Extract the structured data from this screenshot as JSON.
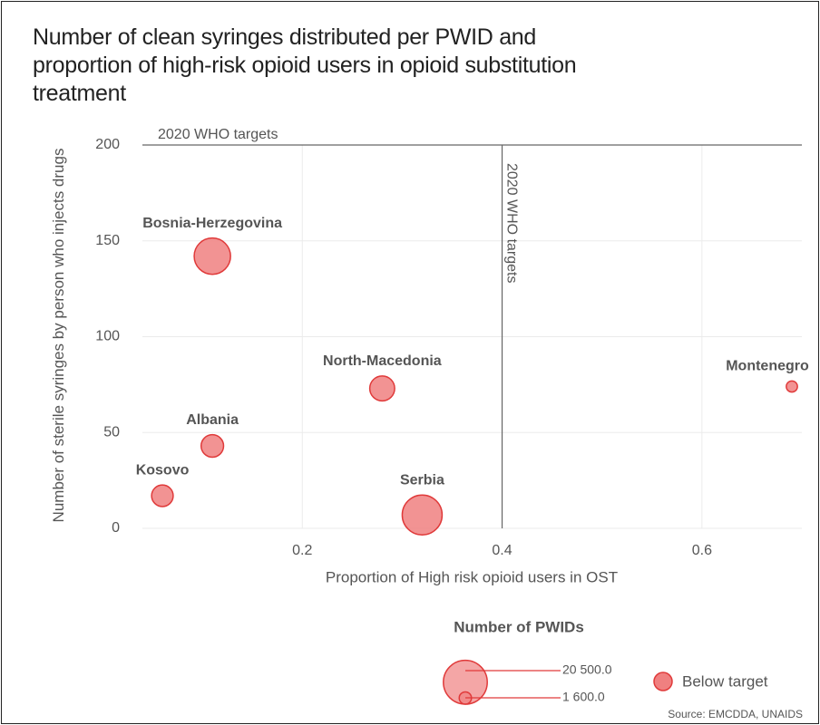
{
  "chart_data": {
    "type": "scatter",
    "title": "Number of clean syringes distributed per PWID and proportion of high-risk opioid users in opioid substitution treatment",
    "x_label": "Proportion of High risk opioid users in OST",
    "y_label": "Number of sterile syringes by person who injects drugs",
    "xlim": [
      0.04,
      0.7
    ],
    "ylim": [
      0,
      200
    ],
    "xticks": [
      0.2,
      0.4,
      0.6
    ],
    "yticks": [
      0,
      50,
      100,
      150,
      200
    ],
    "grid": true,
    "reference_lines": [
      {
        "axis": "y",
        "value": 200,
        "label": "2020 WHO targets"
      },
      {
        "axis": "x",
        "value": 0.4,
        "label": "2020 WHO targets"
      }
    ],
    "series": [
      {
        "name": "Below target",
        "color": "#f08080",
        "labels": [
          "Bosnia-Herzegovina",
          "North-Macedonia",
          "Albania",
          "Kosovo",
          "Serbia",
          "Montenegro"
        ],
        "x": [
          0.11,
          0.28,
          0.11,
          0.06,
          0.32,
          0.69
        ],
        "values": [
          142,
          73,
          43,
          17,
          7,
          74
        ],
        "sizes": [
          17000,
          8000,
          6500,
          6000,
          20500,
          1600
        ]
      }
    ],
    "size_legend": {
      "title": "Number of PWIDs",
      "ticks": [
        {
          "value": 20500,
          "label": "20 500.0"
        },
        {
          "value": 1600,
          "label": "1 600.0"
        }
      ]
    },
    "source": "Source: EMCDDA, UNAIDS"
  }
}
